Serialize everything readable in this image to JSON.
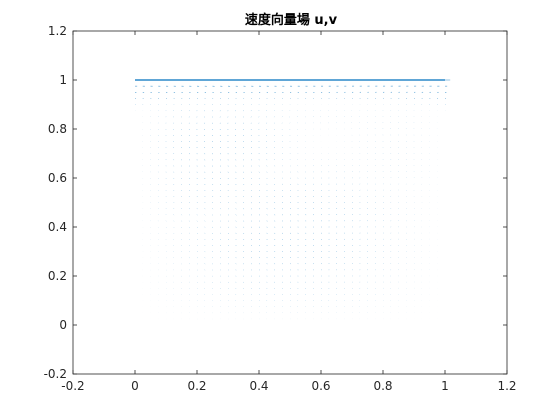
{
  "chart_data": {
    "type": "quiver",
    "title": "速度向量場 u,v",
    "xlabel": "",
    "ylabel": "",
    "xlim": [
      -0.2,
      1.2
    ],
    "ylim": [
      -0.2,
      1.2
    ],
    "xticks": [
      -0.2,
      0,
      0.2,
      0.4,
      0.6,
      0.8,
      1,
      1.2
    ],
    "xtick_labels": [
      "-0.2",
      "0",
      "0.2",
      "0.4",
      "0.6",
      "0.8",
      "1",
      "1.2"
    ],
    "yticks": [
      -0.2,
      0,
      0.2,
      0.4,
      0.6,
      0.8,
      1,
      1.2
    ],
    "ytick_labels": [
      "-0.2",
      "0",
      "0.2",
      "0.4",
      "0.6",
      "0.8",
      "1",
      "1.2"
    ],
    "grid": false,
    "box": true,
    "field": {
      "description": "lid-driven cavity velocity field on unit square",
      "x_range": [
        0,
        1
      ],
      "y_range": [
        0,
        1
      ],
      "lid_velocity": 1.0,
      "grid_points": 41
    },
    "color": "#0072BD"
  }
}
